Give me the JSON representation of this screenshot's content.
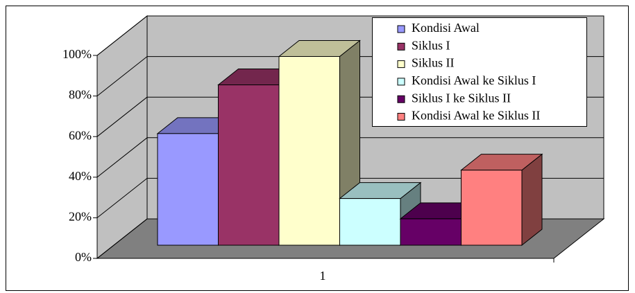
{
  "chart_data": {
    "type": "bar3d",
    "categories": [
      "1"
    ],
    "series": [
      {
        "name": "Kondisi Awal",
        "color": "#9999ff",
        "values": [
          55
        ]
      },
      {
        "name": "Siklus I",
        "color": "#993366",
        "values": [
          79
        ]
      },
      {
        "name": "Siklus II",
        "color": "#ffffcc",
        "values": [
          93
        ]
      },
      {
        "name": "Kondisi Awal ke Siklus I",
        "color": "#ccffff",
        "values": [
          23
        ]
      },
      {
        "name": "Siklus I ke Siklus II",
        "color": "#660066",
        "values": [
          13
        ]
      },
      {
        "name": "Kondisi Awal ke Siklus  II",
        "color": "#ff8080",
        "values": [
          37
        ]
      }
    ],
    "ylim": [
      0,
      100
    ],
    "yticks": [
      {
        "value": 0,
        "label": "0%"
      },
      {
        "value": 20,
        "label": "20%"
      },
      {
        "value": 40,
        "label": "40%"
      },
      {
        "value": 60,
        "label": "60%"
      },
      {
        "value": 80,
        "label": "80%"
      },
      {
        "value": 100,
        "label": "100%"
      }
    ],
    "grid": true,
    "legend": "top-right"
  }
}
